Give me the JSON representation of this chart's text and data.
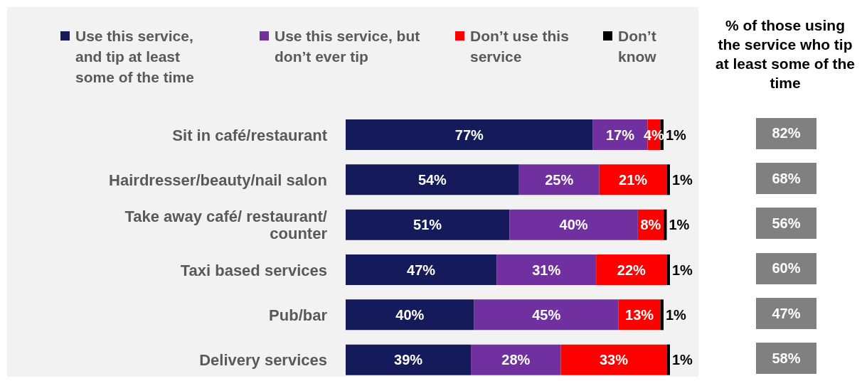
{
  "chart_data": [
    {
      "type": "bar",
      "orientation": "horizontal",
      "stacked": true,
      "legend": "top",
      "categories": [
        "Sit in café/restaurant",
        "Hairdresser/beauty/nail salon",
        "Take away café/ restaurant/ counter",
        "Taxi based services",
        "Pub/bar",
        "Delivery services"
      ],
      "series": [
        {
          "name": "Use this service, and tip at least some of the time",
          "color": "#141a5a",
          "values": [
            77,
            54,
            51,
            47,
            40,
            39
          ],
          "value_labels": [
            "77%",
            "54%",
            "51%",
            "47%",
            "40%",
            "39%"
          ]
        },
        {
          "name": "Use this service, but don’t ever tip",
          "color": "#7030a0",
          "values": [
            17,
            25,
            40,
            31,
            45,
            28
          ],
          "value_labels": [
            "17%",
            "25%",
            "40%",
            "31%",
            "45%",
            "28%"
          ]
        },
        {
          "name": "Don’t use this service",
          "color": "#ff0000",
          "values": [
            4,
            21,
            8,
            22,
            13,
            33
          ],
          "value_labels": [
            "4%",
            "21%",
            "8%",
            "22%",
            "13%",
            "33%"
          ]
        },
        {
          "name": "Don’t know",
          "color": "#000000",
          "values": [
            1,
            1,
            1,
            1,
            1,
            1
          ],
          "value_labels": [
            "1%",
            "1%",
            "1%",
            "1%",
            "1%",
            "1%"
          ]
        }
      ]
    },
    {
      "type": "other",
      "title": "% of those using the service who tip at least some of the time",
      "value_labels": [
        "82%",
        "68%",
        "56%",
        "60%",
        "47%",
        "58%"
      ],
      "color": "#808080"
    }
  ]
}
